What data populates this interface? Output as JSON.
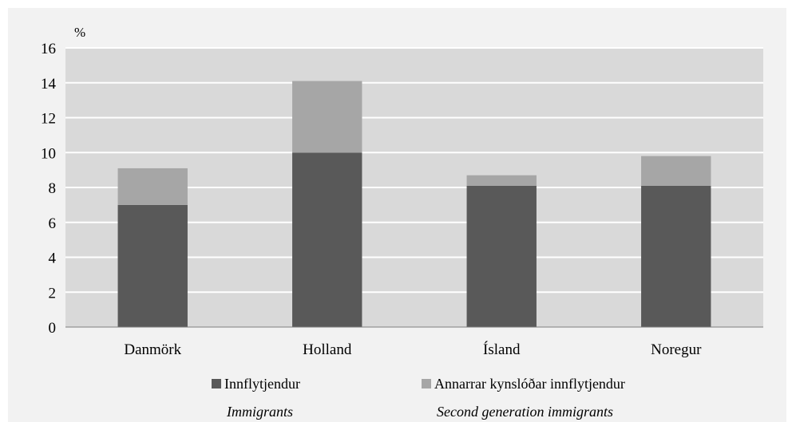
{
  "chart_data": {
    "type": "bar",
    "stacked": true,
    "unit_label": "%",
    "categories": [
      "Danmörk",
      "Holland",
      "Ísland",
      "Noregur"
    ],
    "series": [
      {
        "name": "Innflytjendur",
        "subtitle": "Immigrants",
        "color": "#595959",
        "values": [
          7.0,
          10.0,
          8.1,
          8.1
        ]
      },
      {
        "name": "Annarrar kynslóðar innflytjendur",
        "subtitle": "Second generation immigrants",
        "color": "#a6a6a6",
        "values": [
          2.1,
          4.1,
          0.6,
          1.7
        ]
      }
    ],
    "ylim": [
      0,
      16
    ],
    "yticks": [
      "0",
      "2",
      "4",
      "6",
      "8",
      "10",
      "12",
      "14",
      "16"
    ],
    "grid": true,
    "legend_position": "bottom"
  }
}
